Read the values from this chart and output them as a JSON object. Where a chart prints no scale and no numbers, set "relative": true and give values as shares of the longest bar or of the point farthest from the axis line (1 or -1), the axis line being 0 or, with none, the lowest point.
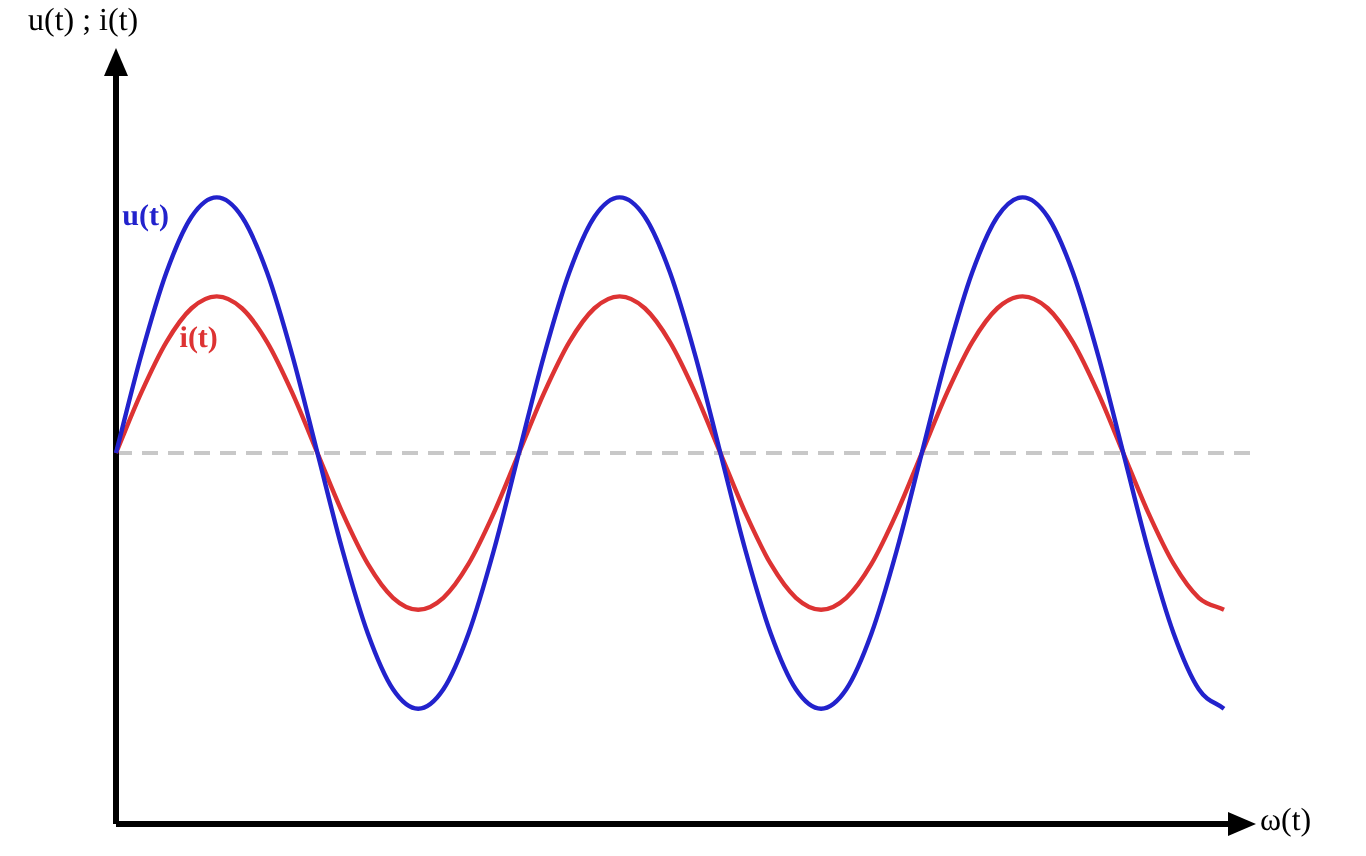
{
  "chart_data": {
    "type": "line",
    "relative": true,
    "xlabel": "ω(t)",
    "ylabel": "u(t) ; i(t)",
    "marker": "none",
    "grid": false,
    "legend": false,
    "categories": [
      null,
      null,
      null,
      null,
      null,
      null,
      null,
      null,
      null,
      null,
      null,
      null,
      null,
      null,
      null,
      null,
      null,
      null,
      null,
      null,
      null,
      null,
      null,
      null,
      null,
      null,
      null,
      null,
      null,
      null,
      null,
      null,
      null,
      null,
      null,
      null,
      null,
      null,
      null,
      null,
      null,
      null,
      null,
      null,
      null
    ],
    "series": [
      {
        "name": "u(t)",
        "color": "#2222cc",
        "values": [
          0.592,
          0.748,
          0.88,
          0.969,
          1,
          0.969,
          0.88,
          0.748,
          0.592,
          0.436,
          0.304,
          0.215,
          0.184,
          0.215,
          0.304,
          0.436,
          0.592,
          0.748,
          0.88,
          0.969,
          1,
          0.969,
          0.88,
          0.748,
          0.592,
          0.436,
          0.304,
          0.215,
          0.184,
          0.215,
          0.304,
          0.436,
          0.592,
          0.748,
          0.88,
          0.969,
          1,
          0.969,
          0.88,
          0.748,
          0.592,
          0.436,
          0.304,
          0.215,
          0.184
        ]
      },
      {
        "name": "i(t)",
        "color": "#dd3333",
        "values": [
          0.592,
          0.688,
          0.769,
          0.823,
          0.842,
          0.823,
          0.769,
          0.688,
          0.592,
          0.496,
          0.415,
          0.361,
          0.342,
          0.361,
          0.415,
          0.496,
          0.592,
          0.688,
          0.769,
          0.823,
          0.842,
          0.823,
          0.769,
          0.688,
          0.592,
          0.496,
          0.415,
          0.361,
          0.342,
          0.361,
          0.415,
          0.496,
          0.592,
          0.688,
          0.769,
          0.823,
          0.842,
          0.823,
          0.769,
          0.688,
          0.592,
          0.496,
          0.415,
          0.361,
          0.342
        ]
      }
    ],
    "ref_lines": [
      {
        "axis": "y",
        "value": 0.592,
        "color": "#c8c8c8",
        "line_style": "dashed"
      }
    ]
  }
}
